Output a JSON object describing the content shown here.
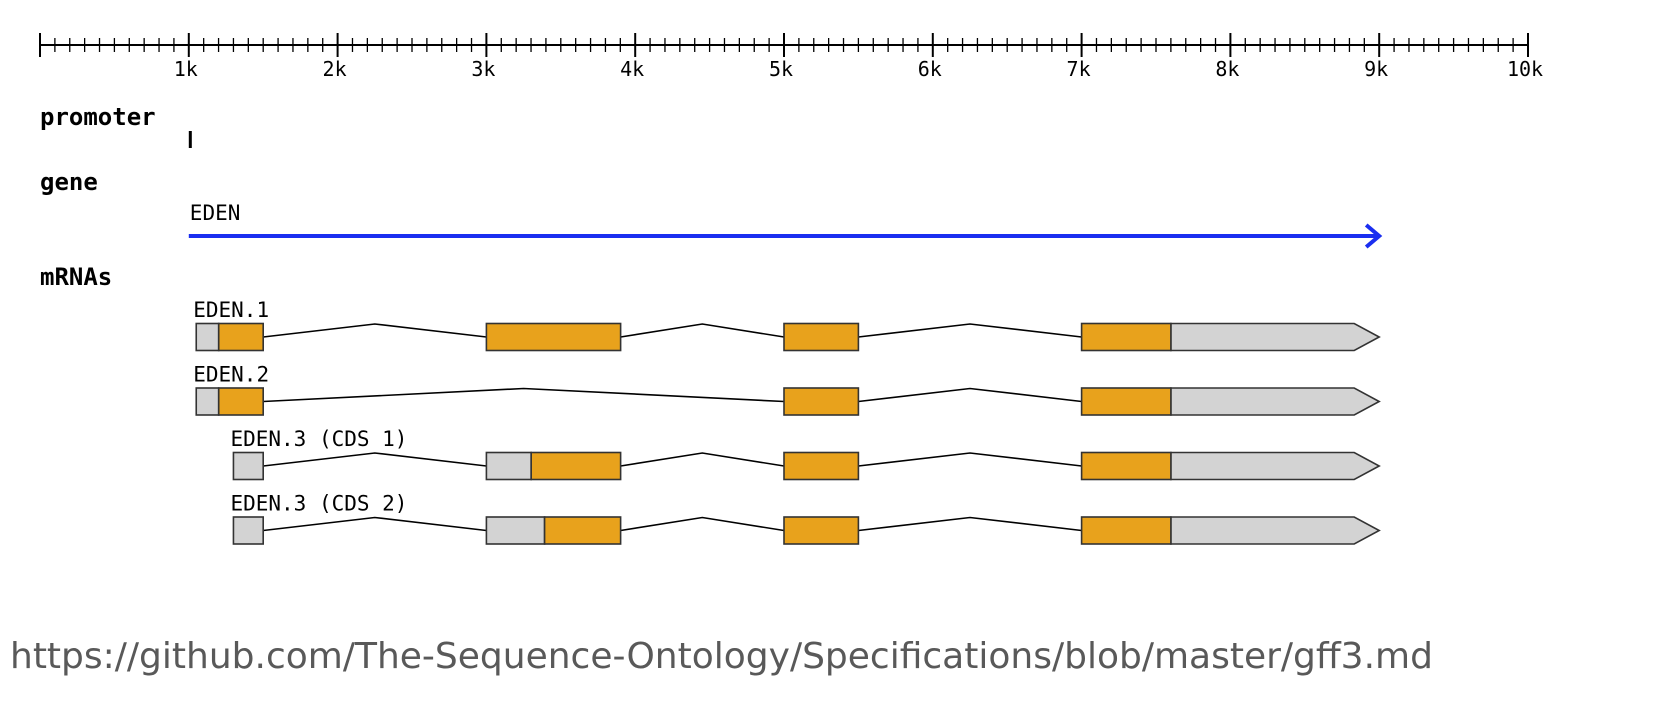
{
  "ruler": {
    "ticks": [
      {
        "pos": 1000,
        "label": "1k"
      },
      {
        "pos": 2000,
        "label": "2k"
      },
      {
        "pos": 3000,
        "label": "3k"
      },
      {
        "pos": 4000,
        "label": "4k"
      },
      {
        "pos": 5000,
        "label": "5k"
      },
      {
        "pos": 6000,
        "label": "6k"
      },
      {
        "pos": 7000,
        "label": "7k"
      },
      {
        "pos": 8000,
        "label": "8k"
      },
      {
        "pos": 9000,
        "label": "9k"
      },
      {
        "pos": 10000,
        "label": "10k"
      }
    ],
    "end": 10000,
    "minor_step": 100
  },
  "tracks": {
    "promoter": {
      "label": "promoter",
      "features": [
        {
          "start": 1000,
          "end": 1010
        }
      ]
    },
    "gene": {
      "label": "gene",
      "features": [
        {
          "name": "EDEN",
          "start": 1000,
          "end": 9000,
          "strand": "+"
        }
      ]
    },
    "mrnas": {
      "label": "mRNAs",
      "transcripts": [
        {
          "name": "EDEN.1",
          "exons": [
            {
              "start": 1050,
              "end": 1500,
              "cds_start": 1201
            },
            {
              "start": 3000,
              "end": 3902
            },
            {
              "start": 5000,
              "end": 5500
            },
            {
              "start": 7000,
              "end": 9000,
              "cds_end": 7600
            }
          ]
        },
        {
          "name": "EDEN.2",
          "exons": [
            {
              "start": 1050,
              "end": 1500,
              "cds_start": 1201
            },
            {
              "start": 5000,
              "end": 5500
            },
            {
              "start": 7000,
              "end": 9000,
              "cds_end": 7600
            }
          ]
        },
        {
          "name": "EDEN.3 (CDS 1)",
          "exons": [
            {
              "start": 1300,
              "end": 1500,
              "cds_start": null
            },
            {
              "start": 3000,
              "end": 3902,
              "cds_start": 3301
            },
            {
              "start": 5000,
              "end": 5500
            },
            {
              "start": 7000,
              "end": 9000,
              "cds_end": 7600
            }
          ]
        },
        {
          "name": "EDEN.3 (CDS 2)",
          "exons": [
            {
              "start": 1300,
              "end": 1500,
              "cds_start": null
            },
            {
              "start": 3000,
              "end": 3902,
              "cds_start": 3391
            },
            {
              "start": 5000,
              "end": 5500
            },
            {
              "start": 7000,
              "end": 9000,
              "cds_end": 7600
            }
          ]
        }
      ]
    }
  },
  "colors": {
    "cds": "#e8a21c",
    "utr": "#d3d3d3",
    "gene_arrow": "#1a2ef0",
    "outline": "#333333"
  },
  "source": "https://github.com/The-Sequence-Ontology/Specifications/blob/master/gff3.md"
}
